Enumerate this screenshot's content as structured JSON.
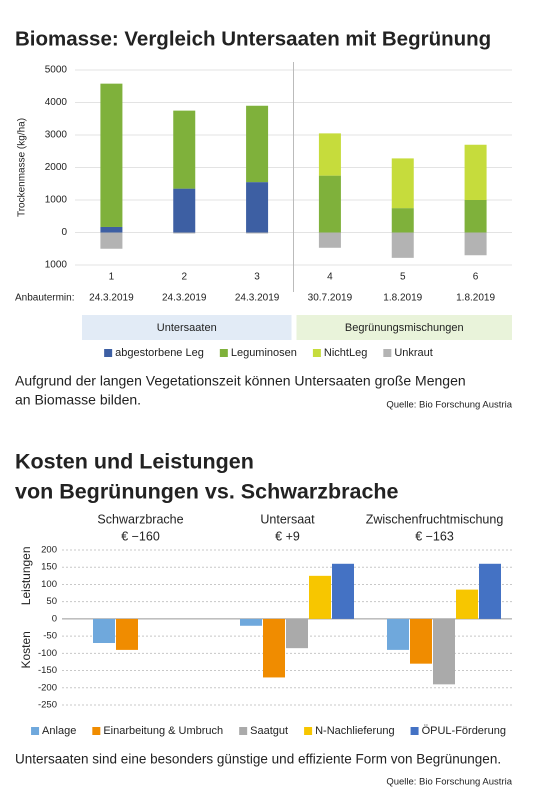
{
  "chart_data": [
    {
      "type": "stacked_bar",
      "title": "Biomasse: Vergleich Untersaaten mit Begrünung",
      "y_label": "Trockenmasse (kg/ha)",
      "x_label": "Anbautermin:",
      "categories": [
        "1",
        "2",
        "3",
        "4",
        "5",
        "6"
      ],
      "dates": [
        "24.3.2019",
        "24.3.2019",
        "24.3.2019",
        "30.7.2019",
        "1.8.2019",
        "1.8.2019"
      ],
      "groups": [
        "Untersaaten",
        "Begrünungsmischungen"
      ],
      "series": [
        {
          "name": "abgestorbene Leg",
          "color": "#3d5fa3",
          "values": [
            170,
            1350,
            1550,
            null,
            null,
            null
          ]
        },
        {
          "name": "Leguminosen",
          "color": "#7fb13b",
          "values": [
            4410,
            2400,
            2350,
            1750,
            750,
            1000
          ]
        },
        {
          "name": "NichtLeg",
          "color": "#c6dc3c",
          "values": [
            null,
            null,
            null,
            1300,
            1530,
            1700
          ]
        },
        {
          "name": "Unkraut",
          "color": "#b3b3b3",
          "values": [
            -500,
            -30,
            -30,
            -470,
            -780,
            -700
          ]
        }
      ],
      "ylim": [
        -1000,
        5000
      ],
      "yticks": [
        5000,
        4000,
        3000,
        2000,
        1000,
        0,
        {
          "value": -1000,
          "label": "1000"
        }
      ],
      "grid": true,
      "caption": [
        "Aufgrund der langen Vegetationszeit können Untersaaten große Mengen",
        "an Biomasse bilden."
      ],
      "source": "Quelle: Bio Forschung Austria"
    },
    {
      "type": "grouped_bar",
      "title": [
        "Kosten und Leistungen",
        "von Begrünungen vs. Schwarzbrache"
      ],
      "y_label_positive": "Leistungen",
      "y_label_negative": "Kosten",
      "categories": [
        "Schwarzbrache",
        "Untersaat",
        "Zwischenfruchtmischung"
      ],
      "category_notes": [
        "€ −160",
        "€ +9",
        "€ −163"
      ],
      "series": [
        {
          "name": "Anlage",
          "color": "#6fa8dc",
          "values": [
            -70,
            -20,
            -90
          ]
        },
        {
          "name": "Einarbeitung & Umbruch",
          "color": "#f08c00",
          "values": [
            -90,
            -170,
            -130
          ]
        },
        {
          "name": "Saatgut",
          "color": "#aaaaaa",
          "values": [
            null,
            -85,
            -190
          ]
        },
        {
          "name": "N-Nachlieferung",
          "color": "#f7c600",
          "values": [
            null,
            125,
            85
          ]
        },
        {
          "name": "ÖPUL-Förderung",
          "color": "#4472c4",
          "values": [
            null,
            160,
            160
          ]
        }
      ],
      "ylim": [
        -250,
        200
      ],
      "yticks": [
        200,
        150,
        100,
        50,
        0,
        -50,
        -100,
        -150,
        -200,
        -250
      ],
      "grid": true,
      "caption": "Untersaaten sind eine besonders günstige und effiziente Form von Begrünungen.",
      "source": "Quelle: Bio Forschung Austria"
    }
  ]
}
